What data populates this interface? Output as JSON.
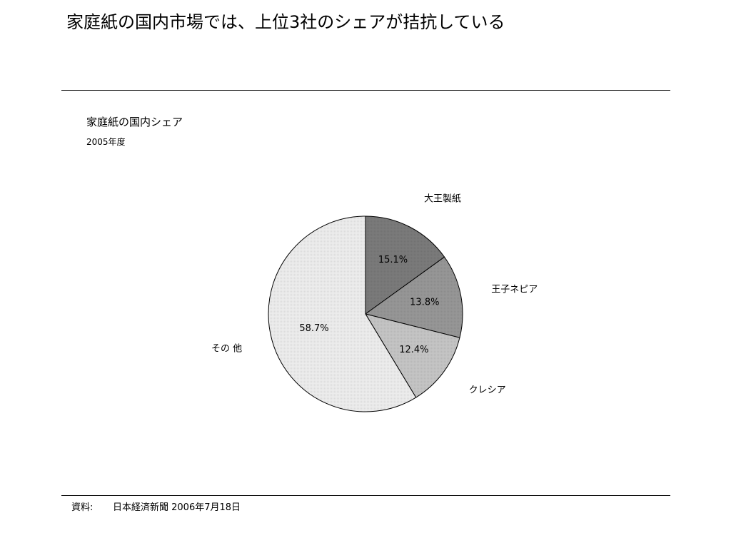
{
  "headline": "家庭紙の国内市場では、上位3社のシェアが拮抗している",
  "chart_data": {
    "type": "pie",
    "title": "家庭紙の国内シェア",
    "subtitle": "2005年度",
    "slices": [
      {
        "label": "大王製紙",
        "value": 15.1,
        "value_label": "15.1%",
        "color": "#7a7a7a"
      },
      {
        "label": "王子ネピア",
        "value": 13.8,
        "value_label": "13.8%",
        "color": "#969696"
      },
      {
        "label": "クレシア",
        "value": 12.4,
        "value_label": "12.4%",
        "color": "#c4c4c4"
      },
      {
        "label": "その 他",
        "value": 58.7,
        "value_label": "58.7%",
        "color": "#ececec"
      }
    ],
    "start": "12 o'clock",
    "direction": "clockwise"
  },
  "source": {
    "label": "資料:",
    "text": "日本経済新聞 2006年7月18日"
  }
}
